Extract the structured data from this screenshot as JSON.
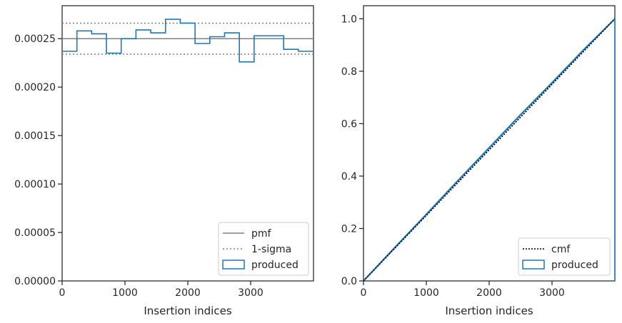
{
  "colors": {
    "produced": "#1f77b4",
    "pmf": "#808080",
    "cmf": "#000000",
    "axis": "#262626",
    "legend_edge": "#cccccc"
  },
  "chart_data": [
    {
      "type": "step-histogram",
      "xlabel": "Insertion indices",
      "ylabel": "",
      "xlim": [
        0,
        4000
      ],
      "ylim": [
        0,
        0.000284
      ],
      "xticks": [
        "0",
        "1000",
        "2000",
        "3000"
      ],
      "xtick_values": [
        0,
        1000,
        2000,
        3000
      ],
      "yticks": [
        "0.00000",
        "0.00005",
        "0.00010",
        "0.00015",
        "0.00020",
        "0.00025"
      ],
      "ytick_values": [
        0,
        5e-05,
        0.0001,
        0.00015,
        0.0002,
        0.00025
      ],
      "bin_edges": [
        0,
        235,
        470,
        705,
        940,
        1175,
        1410,
        1645,
        1880,
        2115,
        2350,
        2585,
        2820,
        3055,
        3290,
        3525,
        3760,
        4000
      ],
      "series": [
        {
          "name": "produced",
          "values": [
            0.000237,
            0.000258,
            0.000255,
            0.000235,
            0.00025,
            0.000259,
            0.000256,
            0.00027,
            0.000266,
            0.000245,
            0.000252,
            0.000256,
            0.000226,
            0.000253,
            0.000253,
            0.000239,
            0.000237
          ]
        }
      ],
      "reference_lines": [
        {
          "name": "pmf",
          "y": 0.00025,
          "style": "solid"
        },
        {
          "name": "1-sigma",
          "y": 0.000266,
          "style": "dotted"
        },
        {
          "name": "1-sigma",
          "y": 0.000234,
          "style": "dotted"
        }
      ],
      "legend": {
        "position": "lower-right",
        "entries": [
          "pmf",
          "1-sigma",
          "produced"
        ]
      }
    },
    {
      "type": "line",
      "xlabel": "Insertion indices",
      "ylabel": "",
      "xlim": [
        0,
        4000
      ],
      "ylim": [
        0,
        1.05
      ],
      "xticks": [
        "0",
        "1000",
        "2000",
        "3000"
      ],
      "xtick_values": [
        0,
        1000,
        2000,
        3000
      ],
      "yticks": [
        "0.0",
        "0.2",
        "0.4",
        "0.6",
        "0.8",
        "1.0"
      ],
      "ytick_values": [
        0,
        0.2,
        0.4,
        0.6,
        0.8,
        1.0
      ],
      "series": [
        {
          "name": "cmf",
          "x": [
            0,
            4000
          ],
          "y": [
            0,
            1.0
          ],
          "style": "dotted"
        },
        {
          "name": "produced",
          "x": [
            0,
            500,
            1000,
            1500,
            2000,
            2500,
            3000,
            3500,
            4000
          ],
          "y": [
            0,
            0.128,
            0.254,
            0.382,
            0.508,
            0.634,
            0.756,
            0.881,
            1.0
          ]
        }
      ],
      "legend": {
        "position": "lower-right",
        "entries": [
          "cmf",
          "produced"
        ]
      }
    }
  ]
}
